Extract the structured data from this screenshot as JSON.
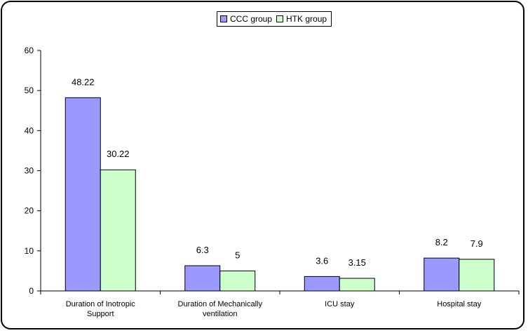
{
  "chart_data": {
    "type": "bar",
    "title": "",
    "xlabel": "",
    "ylabel": "",
    "ylim": [
      0,
      60
    ],
    "yticks": [
      0,
      10,
      20,
      30,
      40,
      50,
      60
    ],
    "grid": false,
    "legend_placement": "top-center",
    "categories": [
      "Duration of Inotropic Support",
      "Duration of Mechanically ventilation",
      "ICU stay",
      "Hospital stay"
    ],
    "series": [
      {
        "name": "CCC group",
        "color": "#9999ff",
        "values": [
          48.22,
          6.3,
          3.6,
          8.2
        ],
        "labels": [
          "48.22",
          "6.3",
          "3.6",
          "8.2"
        ]
      },
      {
        "name": "HTK group",
        "color": "#ccffcc",
        "values": [
          30.22,
          5,
          3.15,
          7.9
        ],
        "labels": [
          "30.22",
          "5",
          "3.15",
          "7.9"
        ]
      }
    ]
  },
  "category_lines": [
    [
      "Duration of Inotropic",
      "Support"
    ],
    [
      "Duration of Mechanically",
      "ventilation"
    ],
    [
      "ICU stay"
    ],
    [
      "Hospital stay"
    ]
  ]
}
